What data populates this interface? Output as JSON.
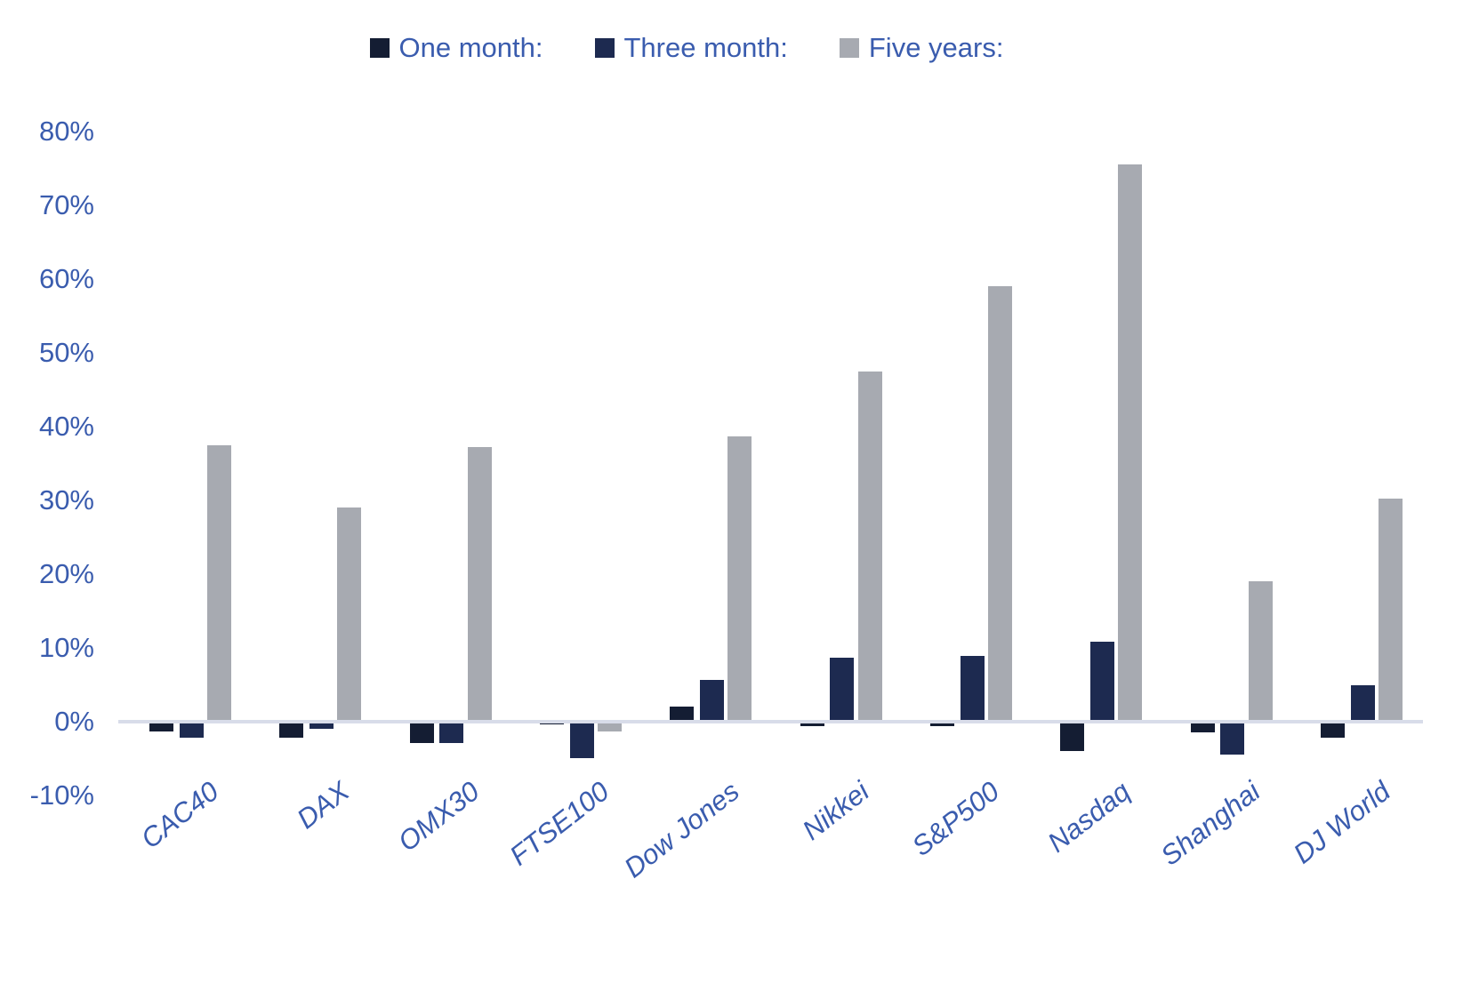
{
  "chart_data": {
    "type": "bar",
    "title": "",
    "categories": [
      "CAC40",
      "DAX",
      "OMX30",
      "FTSE100",
      "Dow Jones",
      "Nikkei",
      "S&P500",
      "Nasdaq",
      "Shanghai",
      "DJ World"
    ],
    "series": [
      {
        "name": "One month:",
        "color": "#141d33",
        "values": [
          -1.2,
          -2.0,
          -2.8,
          -0.3,
          2.1,
          -0.5,
          -0.5,
          -3.9,
          -1.3,
          -2.1
        ]
      },
      {
        "name": "Three month:",
        "color": "#1d2a50",
        "values": [
          -2.0,
          -0.8,
          -2.8,
          -4.8,
          5.7,
          8.7,
          8.9,
          10.9,
          -4.3,
          4.9
        ]
      },
      {
        "name": "Five years:",
        "color": "#a7aab1",
        "values": [
          37.5,
          29.0,
          37.2,
          -1.2,
          38.7,
          47.5,
          59.0,
          75.5,
          19.0,
          30.2
        ]
      }
    ],
    "xlabel": "",
    "ylabel": "",
    "ylim": [
      -10,
      80
    ],
    "ytick_step": 10,
    "ytick_suffix": "%",
    "yticks": [
      "80%",
      "70%",
      "60%",
      "50%",
      "40%",
      "30%",
      "20%",
      "10%",
      "0%",
      "-10%"
    ],
    "grid": false,
    "legend_position": "top-center",
    "axis_line_color": "#d8dce9",
    "label_color": "#3a5cae",
    "background_color": "#ffffff"
  }
}
